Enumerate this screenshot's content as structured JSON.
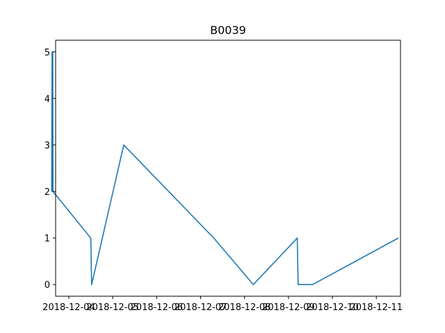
{
  "chart_data": {
    "type": "line",
    "title": "B0039",
    "xlabel": "",
    "ylabel": "",
    "x_ticks": [
      {
        "value": 4.0,
        "label": "2018-12-04"
      },
      {
        "value": 5.0,
        "label": "2018-12-05"
      },
      {
        "value": 6.0,
        "label": "2018-12-06"
      },
      {
        "value": 7.0,
        "label": "2018-12-07"
      },
      {
        "value": 8.0,
        "label": "2018-12-08"
      },
      {
        "value": 9.0,
        "label": "2018-12-09"
      },
      {
        "value": 10.0,
        "label": "2018-12-10"
      },
      {
        "value": 11.0,
        "label": "2018-12-11"
      }
    ],
    "y_ticks": [
      0,
      1,
      2,
      3,
      4,
      5
    ],
    "xlim": [
      3.7,
      11.55
    ],
    "ylim": [
      -0.25,
      5.25
    ],
    "grid": false,
    "series": [
      {
        "name": "B0039",
        "color": "#1f77b4",
        "x": [
          3.61,
          3.62,
          3.625,
          3.63,
          3.635,
          3.64,
          4.5,
          4.52,
          5.25,
          7.3,
          8.2,
          9.2,
          9.22,
          9.55,
          11.5
        ],
        "y": [
          2,
          5,
          2,
          5,
          5,
          2,
          1,
          0,
          3,
          1,
          0,
          1,
          0,
          0,
          1
        ]
      }
    ]
  }
}
